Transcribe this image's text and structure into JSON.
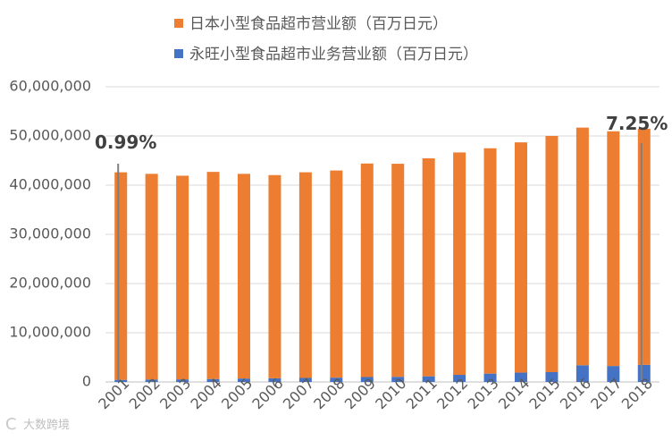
{
  "chart_data": {
    "type": "bar",
    "stacked": true,
    "categories": [
      "2001",
      "2002",
      "2003",
      "2004",
      "2005",
      "2006",
      "2007",
      "2008",
      "2009",
      "2010",
      "2011",
      "2012",
      "2013",
      "2014",
      "2015",
      "2016",
      "2017",
      "2018"
    ],
    "series": [
      {
        "name": "永旺小型食品超市业务营业额（百万日元）",
        "color": "#4472C4",
        "values": [
          418000,
          500000,
          520000,
          600000,
          700000,
          750000,
          820000,
          880000,
          1000000,
          1050000,
          1150000,
          1450000,
          1700000,
          1900000,
          2000000,
          3400000,
          3250000,
          3480000
        ]
      },
      {
        "name": "日本小型食品超市营业额（百万日元）",
        "color": "#ED7D31",
        "values": [
          42200000,
          41800000,
          41400000,
          42100000,
          41600000,
          41300000,
          41800000,
          42100000,
          43400000,
          43300000,
          44300000,
          45200000,
          45800000,
          46800000,
          48000000,
          48300000,
          47700000,
          48000000
        ]
      }
    ],
    "ylim": [
      0,
      60000000
    ],
    "yticks": [
      0,
      10000000,
      20000000,
      30000000,
      40000000,
      50000000,
      60000000
    ],
    "ytick_labels": [
      "0",
      "10,000,000",
      "20,000,000",
      "30,000,000",
      "40,000,000",
      "50,000,000",
      "60,000,000"
    ],
    "grid": true,
    "legend_position": "top",
    "annotations": [
      {
        "text": "0.99%",
        "category": "2001"
      },
      {
        "text": "7.25%",
        "category": "2018"
      }
    ]
  },
  "watermark": {
    "text": "大数跨境",
    "logo": "C"
  }
}
